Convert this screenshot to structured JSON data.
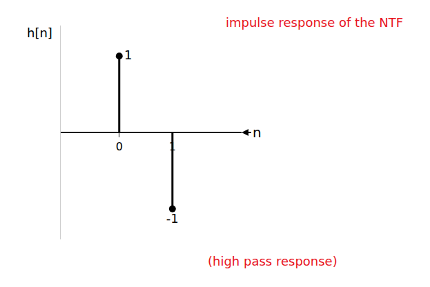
{
  "chart_data": {
    "type": "stem",
    "x": [
      0,
      1
    ],
    "values": [
      1,
      -1
    ],
    "value_labels": [
      "1",
      "-1"
    ],
    "data_labels": true,
    "xlim": [
      -1.1,
      2.3
    ],
    "xticks": [
      0,
      1
    ],
    "ylim": [
      -1.4,
      1.4
    ],
    "tick_labels": "x",
    "grid": false,
    "color": "#000000",
    "x_label": "n",
    "y_label": "h[n]",
    "annotations": [
      {
        "text": "impulse response of the NTF",
        "color": "#e8141e"
      },
      {
        "text": "(high pass response)",
        "color": "#e8141e"
      }
    ]
  }
}
